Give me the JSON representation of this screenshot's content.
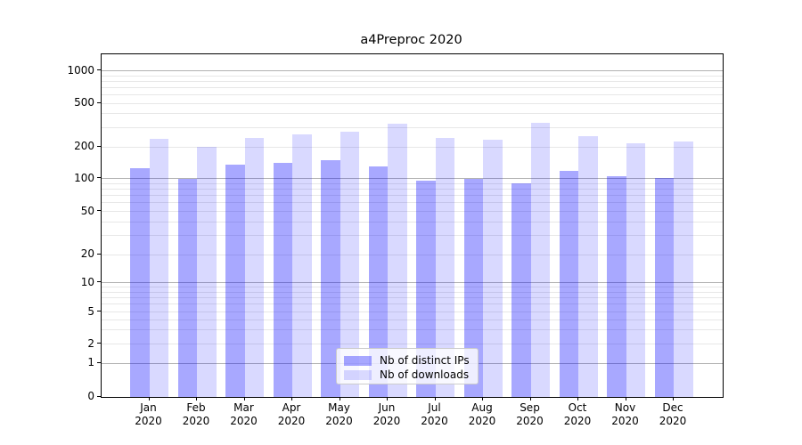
{
  "chart_data": {
    "type": "bar",
    "title": "a4Preproc 2020",
    "categories": [
      "Jan 2020",
      "Feb 2020",
      "Mar 2020",
      "Apr 2020",
      "May 2020",
      "Jun 2020",
      "Jul 2020",
      "Aug 2020",
      "Sep 2020",
      "Oct 2020",
      "Nov 2020",
      "Dec 2020"
    ],
    "series": [
      {
        "name": "Nb of distinct IPs",
        "color": "rgba(0,0,255,0.34)",
        "values": [
          126,
          100,
          135,
          140,
          150,
          129,
          96,
          100,
          90,
          117,
          106,
          102
        ]
      },
      {
        "name": "Nb of downloads",
        "color": "rgba(0,0,255,0.15)",
        "values": [
          235,
          199,
          243,
          258,
          275,
          325,
          243,
          232,
          332,
          250,
          217,
          225
        ]
      }
    ],
    "xlabel": "",
    "ylabel": "",
    "yscale": "symlog",
    "yticks": [
      0,
      1,
      2,
      5,
      10,
      20,
      50,
      100,
      200,
      500,
      1000
    ],
    "ytick_labels": [
      "0",
      "1",
      "2",
      "5",
      "10",
      "20",
      "50",
      "100",
      "200",
      "500",
      "1000"
    ],
    "ylim": [
      0,
      1400
    ],
    "grid": true,
    "legend_position": "lower center"
  },
  "colors": {
    "bar_distinct_ips": "rgba(0,0,255,0.34)",
    "bar_downloads": "rgba(0,0,255,0.15)",
    "grid_major": "#b2b2b2",
    "grid_minor": "#e7e7e7",
    "axis": "#000000",
    "legend_border": "#cccccc",
    "legend_background": "rgba(255,255,255,0.8)"
  }
}
